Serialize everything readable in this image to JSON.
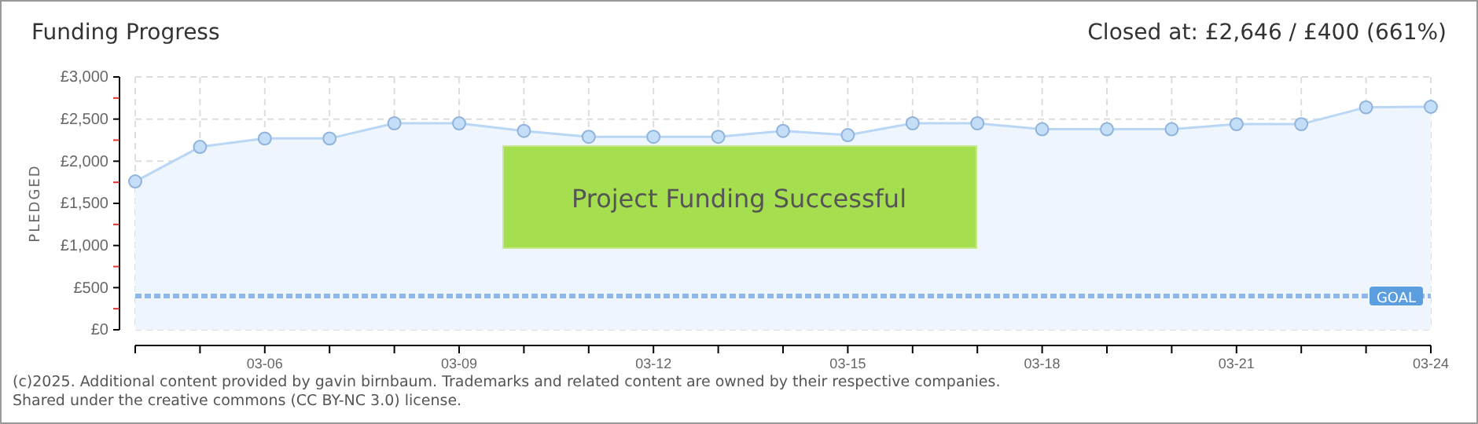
{
  "chart_data": {
    "type": "area",
    "title": "Funding Progress",
    "subtitle": "Closed at:  £2,646 / £400 (661%)",
    "ylabel": "PLEDGED",
    "x": [
      "--03-04",
      "--03-05",
      "--03-06",
      "--03-07",
      "--03-08",
      "--03-09",
      "--03-10",
      "--03-11",
      "--03-12",
      "--03-13",
      "--03-14",
      "--03-15",
      "--03-16",
      "--03-17",
      "--03-18",
      "--03-19",
      "--03-20",
      "--03-21",
      "--03-22",
      "--03-23",
      "--03-24"
    ],
    "series": [
      {
        "color": "#b9d7f5",
        "values": [
          1760,
          2170,
          2270,
          2270,
          2450,
          2450,
          2360,
          2290,
          2290,
          2290,
          2360,
          2310,
          2450,
          2450,
          2380,
          2380,
          2380,
          2440,
          2440,
          2640,
          2646
        ]
      }
    ],
    "xlim": [
      "--03-04",
      "--03-24"
    ],
    "xticks": [
      {
        "value": "--03-04",
        "label": null
      },
      {
        "value": "--03-05",
        "label": null
      },
      {
        "value": "--03-06",
        "label": "03-06"
      },
      {
        "value": "--03-07",
        "label": null
      },
      {
        "value": "--03-08",
        "label": null
      },
      {
        "value": "--03-09",
        "label": "03-09"
      },
      {
        "value": "--03-10",
        "label": null
      },
      {
        "value": "--03-11",
        "label": null
      },
      {
        "value": "--03-12",
        "label": "03-12"
      },
      {
        "value": "--03-13",
        "label": null
      },
      {
        "value": "--03-14",
        "label": null
      },
      {
        "value": "--03-15",
        "label": "03-15"
      },
      {
        "value": "--03-16",
        "label": null
      },
      {
        "value": "--03-17",
        "label": null
      },
      {
        "value": "--03-18",
        "label": "03-18"
      },
      {
        "value": "--03-19",
        "label": null
      },
      {
        "value": "--03-20",
        "label": null
      },
      {
        "value": "--03-21",
        "label": "03-21"
      },
      {
        "value": "--03-22",
        "label": null
      },
      {
        "value": "--03-23",
        "label": null
      },
      {
        "value": "--03-24",
        "label": "03-24"
      }
    ],
    "ylim": [
      0,
      3000
    ],
    "yticks": [
      {
        "value": 0,
        "label": "£0"
      },
      {
        "value": 250,
        "label": null
      },
      {
        "value": 500,
        "label": "£500"
      },
      {
        "value": 750,
        "label": null
      },
      {
        "value": 1000,
        "label": "£1,000"
      },
      {
        "value": 1250,
        "label": null
      },
      {
        "value": 1500,
        "label": "£1,500"
      },
      {
        "value": 1750,
        "label": null
      },
      {
        "value": 2000,
        "label": "£2,000"
      },
      {
        "value": 2250,
        "label": null
      },
      {
        "value": 2500,
        "label": "£2,500"
      },
      {
        "value": 2750,
        "label": null
      },
      {
        "value": 3000,
        "label": "£3,000"
      }
    ],
    "grid": true,
    "marker": "circle",
    "ref_lines": [
      {
        "axis": "y",
        "value": 400,
        "label": "GOAL",
        "color": "#8fb8e6",
        "line_style": "dashed"
      }
    ],
    "annotations": [
      "Project Funding Successful",
      "(c)2025. Additional content provided by gavin birnbaum. Trademarks and related content are owned by their respective companies.",
      "Shared under the creative commons (CC BY-NC 3.0) license."
    ]
  }
}
